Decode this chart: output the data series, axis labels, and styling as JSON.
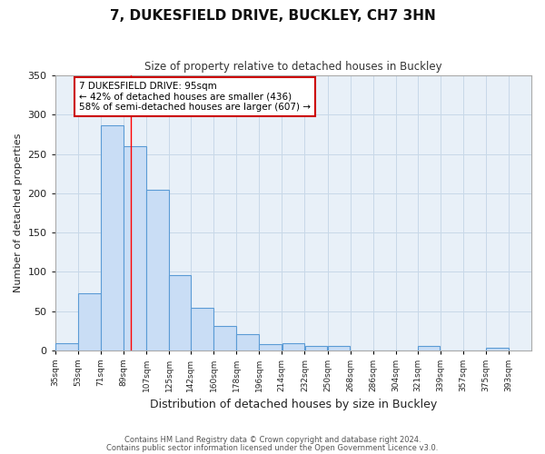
{
  "title": "7, DUKESFIELD DRIVE, BUCKLEY, CH7 3HN",
  "subtitle": "Size of property relative to detached houses in Buckley",
  "xlabel": "Distribution of detached houses by size in Buckley",
  "ylabel": "Number of detached properties",
  "bar_left_edges": [
    35,
    53,
    71,
    89,
    107,
    125,
    142,
    160,
    178,
    196,
    214,
    232,
    250,
    268,
    286,
    304,
    321,
    339,
    357,
    375
  ],
  "bar_heights": [
    9,
    72,
    287,
    260,
    204,
    96,
    54,
    31,
    21,
    8,
    9,
    5,
    5,
    0,
    0,
    0,
    5,
    0,
    0,
    3
  ],
  "bar_widths": [
    18,
    18,
    18,
    18,
    18,
    17,
    18,
    18,
    18,
    18,
    18,
    18,
    18,
    18,
    18,
    17,
    18,
    18,
    18,
    18
  ],
  "x_tick_labels": [
    "35sqm",
    "53sqm",
    "71sqm",
    "89sqm",
    "107sqm",
    "125sqm",
    "142sqm",
    "160sqm",
    "178sqm",
    "196sqm",
    "214sqm",
    "232sqm",
    "250sqm",
    "268sqm",
    "286sqm",
    "304sqm",
    "321sqm",
    "339sqm",
    "357sqm",
    "375sqm",
    "393sqm"
  ],
  "x_tick_positions": [
    35,
    53,
    71,
    89,
    107,
    125,
    142,
    160,
    178,
    196,
    214,
    232,
    250,
    268,
    286,
    304,
    321,
    339,
    357,
    375,
    393
  ],
  "ylim": [
    0,
    350
  ],
  "xlim": [
    35,
    411
  ],
  "bar_color": "#c9ddf5",
  "bar_edge_color": "#5b9bd5",
  "red_line_x": 95,
  "annotation_title": "7 DUKESFIELD DRIVE: 95sqm",
  "annotation_line1": "← 42% of detached houses are smaller (436)",
  "annotation_line2": "58% of semi-detached houses are larger (607) →",
  "annotation_box_color": "#ffffff",
  "annotation_box_edge_color": "#cc0000",
  "footer_line1": "Contains HM Land Registry data © Crown copyright and database right 2024.",
  "footer_line2": "Contains public sector information licensed under the Open Government Licence v3.0.",
  "background_color": "#ffffff",
  "grid_color": "#c8d8e8"
}
